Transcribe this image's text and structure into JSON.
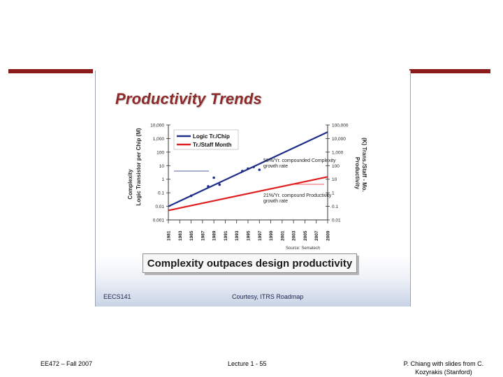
{
  "slide": {
    "title": "Productivity Trends",
    "caption": "Complexity outpaces design productivity",
    "image_footer_left": "EECS141",
    "image_footer_right": "Courtesy, ITRS Roadmap"
  },
  "footer": {
    "left": "EE472 – Fall 2007",
    "center": "Lecture 1 - 55",
    "right": "P. Chiang with slides from C. Kozyrakis (Stanford)"
  },
  "colors": {
    "rule": "#8b1a1a",
    "logic": "#1f2f8a",
    "staff": "#e02020"
  },
  "chart_data": {
    "type": "line",
    "x_ticks": [
      "1981",
      "1983",
      "1985",
      "1987",
      "1989",
      "1991",
      "1993",
      "1995",
      "1997",
      "1999",
      "2001",
      "2003",
      "2005",
      "2007",
      "2009"
    ],
    "xlim": [
      1981,
      2009
    ],
    "left_axis": {
      "label": "Logic Transistor per Chip (M)",
      "outer_label": "Complexity",
      "scale": "log",
      "ylim": [
        0.001,
        10000
      ],
      "ticks": [
        "10,000",
        "1,000",
        "100",
        "10",
        "1",
        "0.1",
        "0.01",
        "0.001"
      ]
    },
    "right_axis": {
      "label": "(K) Trans./Staff - Mo.",
      "outer_label": "Productivity",
      "scale": "log",
      "ylim": [
        0.01,
        100000
      ],
      "ticks": [
        "100,000",
        "10,000",
        "1,000",
        "100",
        "10",
        "1",
        "0.1",
        "0.01"
      ]
    },
    "legend": {
      "placement": "top-left",
      "entries": [
        "Logic Tr./Chip",
        "Tr./Staff Month"
      ]
    },
    "series": [
      {
        "name": "Logic Tr./Chip",
        "axis": "left",
        "x": [
          1981,
          2009
        ],
        "y": [
          0.01,
          3000
        ]
      },
      {
        "name": "Tr./Staff Month",
        "axis": "right",
        "x": [
          1981,
          2009
        ],
        "y": [
          0.05,
          15
        ]
      }
    ],
    "points": [
      {
        "series": "Logic Tr./Chip",
        "x": 1985,
        "y": 0.06
      },
      {
        "series": "Logic Tr./Chip",
        "x": 1988,
        "y": 0.3
      },
      {
        "series": "Logic Tr./Chip",
        "x": 1989,
        "y": 1.3
      },
      {
        "series": "Logic Tr./Chip",
        "x": 1990,
        "y": 0.4
      },
      {
        "series": "Logic Tr./Chip",
        "x": 1994,
        "y": 4
      },
      {
        "series": "Logic Tr./Chip",
        "x": 1995,
        "y": 6
      },
      {
        "series": "Logic Tr./Chip",
        "x": 1996,
        "y": 8
      },
      {
        "series": "Logic Tr./Chip",
        "x": 1997,
        "y": 5
      }
    ],
    "annotations": [
      "58%/Yr. compounded Complexity growth rate",
      "21%/Yr. compound Productivity growth rate"
    ],
    "source": "Source: Sematech"
  }
}
